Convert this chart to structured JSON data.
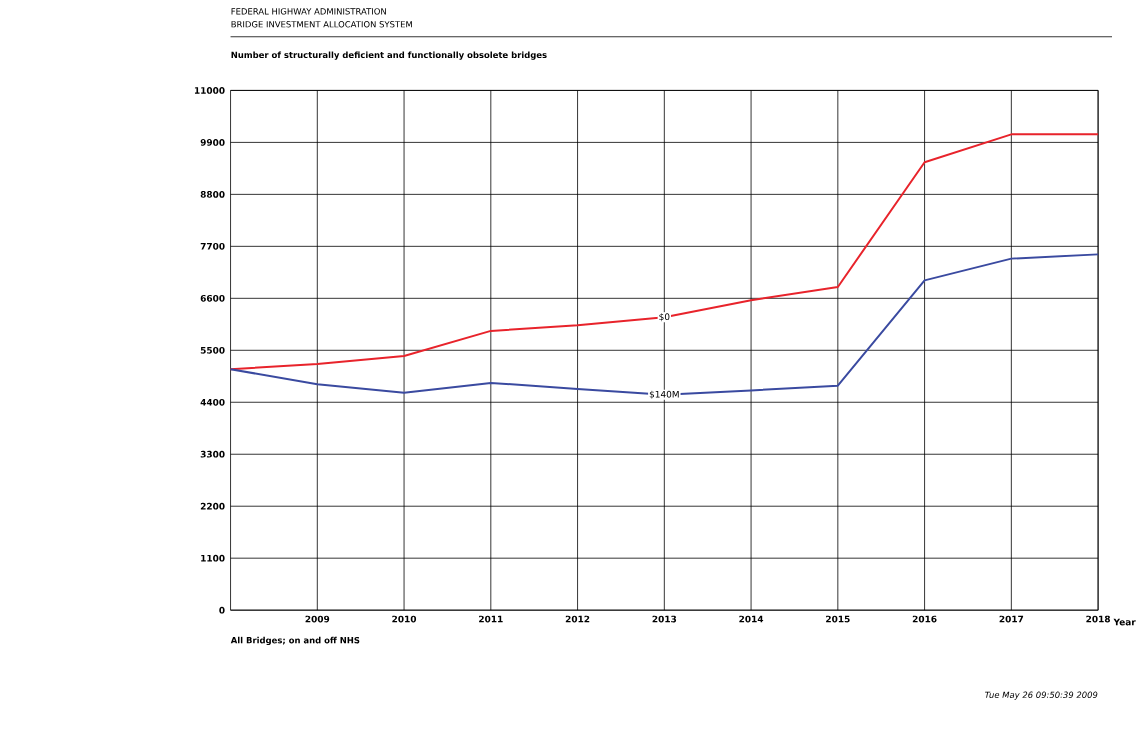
{
  "chart_data": {
    "type": "line",
    "title": "FEDERAL HIGHWAY ADMINISTRATION",
    "subtitle": "BRIDGE INVESTMENT ALLOCATION SYSTEM",
    "ylabel": "Number of structurally deficient and functionally obsolete bridges",
    "xlabel": "Year",
    "x": [
      2008,
      2009,
      2010,
      2011,
      2012,
      2013,
      2014,
      2015,
      2016,
      2017,
      2018
    ],
    "series": [
      {
        "name": "$0",
        "color": "#e8232b",
        "values": [
          5100,
          5210,
          5380,
          5910,
          6030,
          6200,
          6560,
          6840,
          9480,
          10070,
          10070
        ]
      },
      {
        "name": "$140M",
        "color": "#3a4aa0",
        "values": [
          5100,
          4780,
          4600,
          4810,
          4680,
          4560,
          4650,
          4750,
          6980,
          7440,
          7530
        ]
      }
    ],
    "xlim": [
      2008,
      2018
    ],
    "xticks": [
      2009,
      2010,
      2011,
      2012,
      2013,
      2014,
      2015,
      2016,
      2017,
      2018
    ],
    "ylim": [
      0,
      11000
    ],
    "yticks": [
      0,
      1100,
      2200,
      3300,
      4400,
      5500,
      6600,
      7700,
      8800,
      9900,
      11000
    ],
    "grid": true,
    "marker": "none",
    "line_style": "solid",
    "annotations": [
      "All Bridges; on and off NHS",
      "Tue May 26 09:50:39 2009"
    ]
  }
}
